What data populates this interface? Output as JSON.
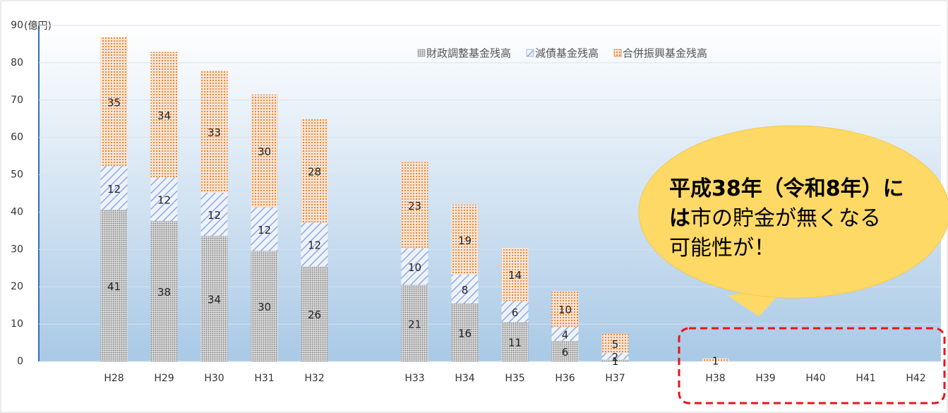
{
  "chart_data": {
    "type": "stacked_bar",
    "y_label": "(億円)",
    "categories": [
      null,
      "H28",
      "H29",
      "H30",
      "H31",
      "H32",
      null,
      "H33",
      "H34",
      "H35",
      "H36",
      "H37",
      null,
      "H38",
      "H39",
      "H40",
      "H41",
      "H42"
    ],
    "series": [
      {
        "name": "財政調整基金残高",
        "color": "#a6a6a6",
        "values": [
          null,
          40.6,
          37.6,
          33.6,
          29.6,
          25.5,
          null,
          20.5,
          15.5,
          10.5,
          5.5,
          0.5,
          null,
          null,
          null,
          null,
          null,
          null
        ],
        "value_labels": [
          null,
          "41",
          "38",
          "34",
          "30",
          "26",
          null,
          "21",
          "16",
          "11",
          "6",
          "1",
          null,
          null,
          null,
          null,
          null,
          null
        ]
      },
      {
        "name": "減債基金残高",
        "color": "#8faadc",
        "values": [
          null,
          11.7,
          11.7,
          11.6,
          11.7,
          11.7,
          null,
          9.8,
          7.8,
          5.7,
          3.8,
          1.8,
          null,
          null,
          null,
          null,
          null,
          null
        ],
        "value_labels": [
          null,
          "12",
          "12",
          "12",
          "12",
          "12",
          null,
          "10",
          "8",
          "6",
          "4",
          "2",
          null,
          null,
          null,
          null,
          null,
          null
        ]
      },
      {
        "name": "合併振興基金残高",
        "color": "#ed7d31",
        "values": [
          null,
          34.6,
          33.6,
          32.7,
          30.2,
          27.7,
          null,
          23.1,
          18.7,
          14.3,
          9.6,
          5.1,
          null,
          0.8,
          null,
          null,
          null,
          null
        ],
        "value_labels": [
          null,
          "35",
          "34",
          "33",
          "30",
          "28",
          null,
          "23",
          "19",
          "14",
          "10",
          "5",
          null,
          "1",
          null,
          null,
          null,
          null
        ]
      }
    ],
    "ylim": [
      0,
      90
    ],
    "yticks": [
      0,
      10,
      20,
      30,
      40,
      50,
      60,
      70,
      80,
      90
    ],
    "annotation": [
      [
        {
          "text": "平成38年（令和8年）に",
          "bold": true
        }
      ],
      [
        {
          "text": "は",
          "bold": true
        },
        {
          "text": "市の貯金が無くなる",
          "bold": false
        }
      ],
      [
        {
          "text": "可能性が！",
          "bold": false
        }
      ]
    ]
  }
}
